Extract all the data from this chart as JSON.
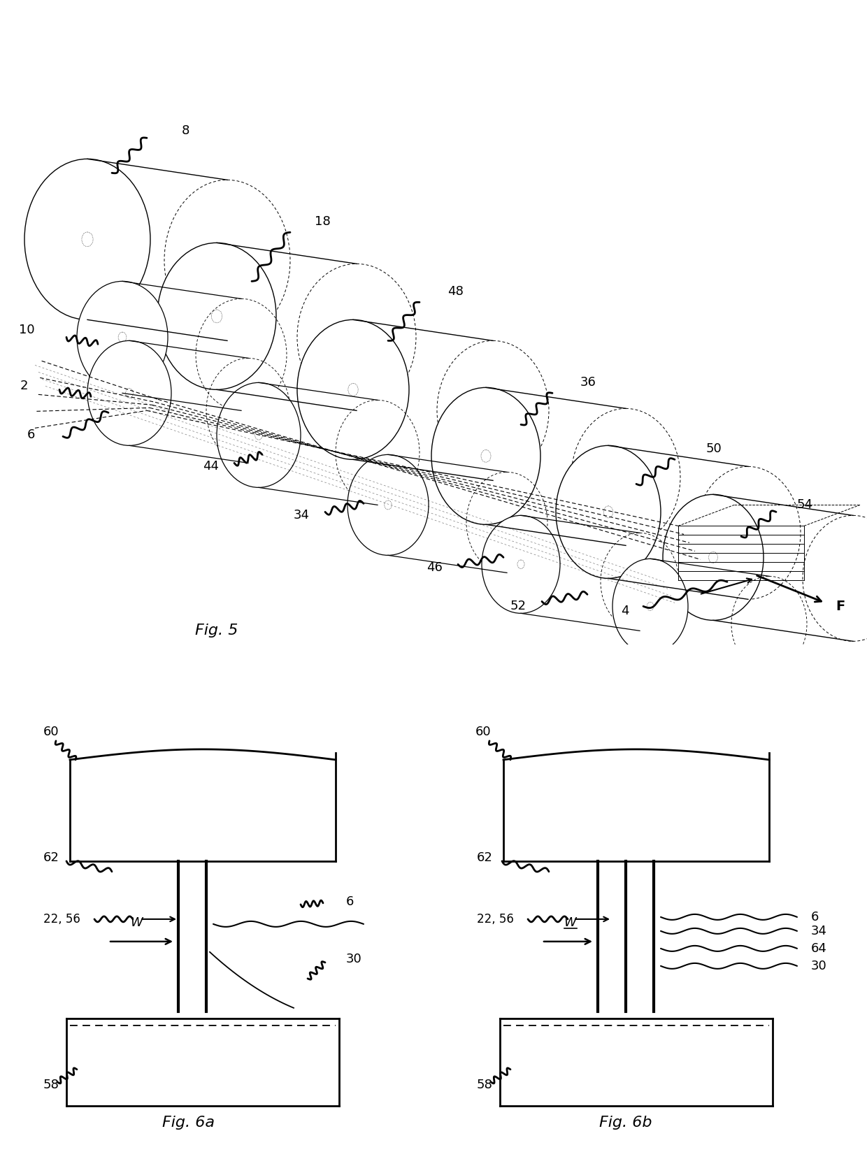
{
  "fig_title_5": "Fig. 5",
  "fig_title_6a": "Fig. 6a",
  "fig_title_6b": "Fig. 6b",
  "bg_color": "#ffffff"
}
